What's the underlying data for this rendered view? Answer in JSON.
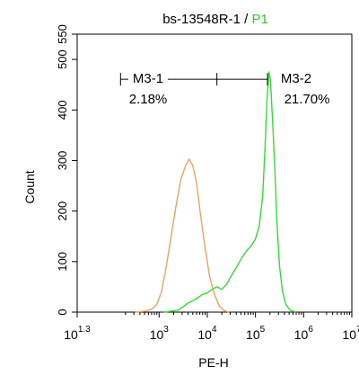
{
  "chart_data": {
    "type": "line",
    "title_parts": [
      {
        "text": "bs-13548R-1 / ",
        "color": "#000000"
      },
      {
        "text": "P1",
        "color": "#2ecc2e"
      }
    ],
    "xlabel": "PE-H",
    "ylabel": "Count",
    "x_scale": "log",
    "xlim": [
      1.3,
      7
    ],
    "ylim": [
      0,
      550
    ],
    "y_ticks": [
      0,
      100,
      200,
      300,
      400,
      500,
      550
    ],
    "x_ticks": [
      {
        "base": "10",
        "exp": "1.3",
        "value": 1.3
      },
      {
        "base": "10",
        "exp": "3",
        "value": 3
      },
      {
        "base": "10",
        "exp": "4",
        "value": 4
      },
      {
        "base": "10",
        "exp": "5",
        "value": 5
      },
      {
        "base": "10",
        "exp": "6",
        "value": 6
      },
      {
        "base": "10",
        "exp": "7",
        "value": 7
      }
    ],
    "grid": false,
    "series": [
      {
        "color": "#f0a060",
        "points": [
          [
            2.5,
            0
          ],
          [
            2.7,
            2
          ],
          [
            2.85,
            6
          ],
          [
            2.95,
            15
          ],
          [
            3.05,
            40
          ],
          [
            3.15,
            90
          ],
          [
            3.25,
            150
          ],
          [
            3.35,
            210
          ],
          [
            3.45,
            262
          ],
          [
            3.55,
            290
          ],
          [
            3.62,
            303
          ],
          [
            3.7,
            290
          ],
          [
            3.78,
            255
          ],
          [
            3.85,
            200
          ],
          [
            3.95,
            130
          ],
          [
            4.05,
            70
          ],
          [
            4.15,
            35
          ],
          [
            4.25,
            12
          ],
          [
            4.35,
            3
          ],
          [
            4.45,
            0
          ]
        ]
      },
      {
        "color": "#33dd33",
        "points": [
          [
            3.1,
            0
          ],
          [
            3.4,
            4
          ],
          [
            3.6,
            18
          ],
          [
            3.75,
            25
          ],
          [
            3.9,
            35
          ],
          [
            4.0,
            38
          ],
          [
            4.1,
            45
          ],
          [
            4.2,
            50
          ],
          [
            4.3,
            45
          ],
          [
            4.4,
            55
          ],
          [
            4.5,
            72
          ],
          [
            4.6,
            88
          ],
          [
            4.72,
            108
          ],
          [
            4.82,
            122
          ],
          [
            4.92,
            132
          ],
          [
            5.0,
            145
          ],
          [
            5.08,
            170
          ],
          [
            5.15,
            230
          ],
          [
            5.2,
            330
          ],
          [
            5.24,
            420
          ],
          [
            5.28,
            475
          ],
          [
            5.31,
            460
          ],
          [
            5.35,
            390
          ],
          [
            5.4,
            290
          ],
          [
            5.45,
            170
          ],
          [
            5.5,
            90
          ],
          [
            5.56,
            42
          ],
          [
            5.63,
            15
          ],
          [
            5.72,
            4
          ],
          [
            5.85,
            0
          ]
        ]
      }
    ],
    "gates": [
      {
        "name": "M3-1",
        "percent": "2.18%",
        "x_start": 2.2,
        "x_end": 4.2
      },
      {
        "name": "M3-2",
        "percent": "21.70%",
        "x_start": 4.2,
        "x_end": 7
      }
    ],
    "gate_marker_y": 500
  }
}
